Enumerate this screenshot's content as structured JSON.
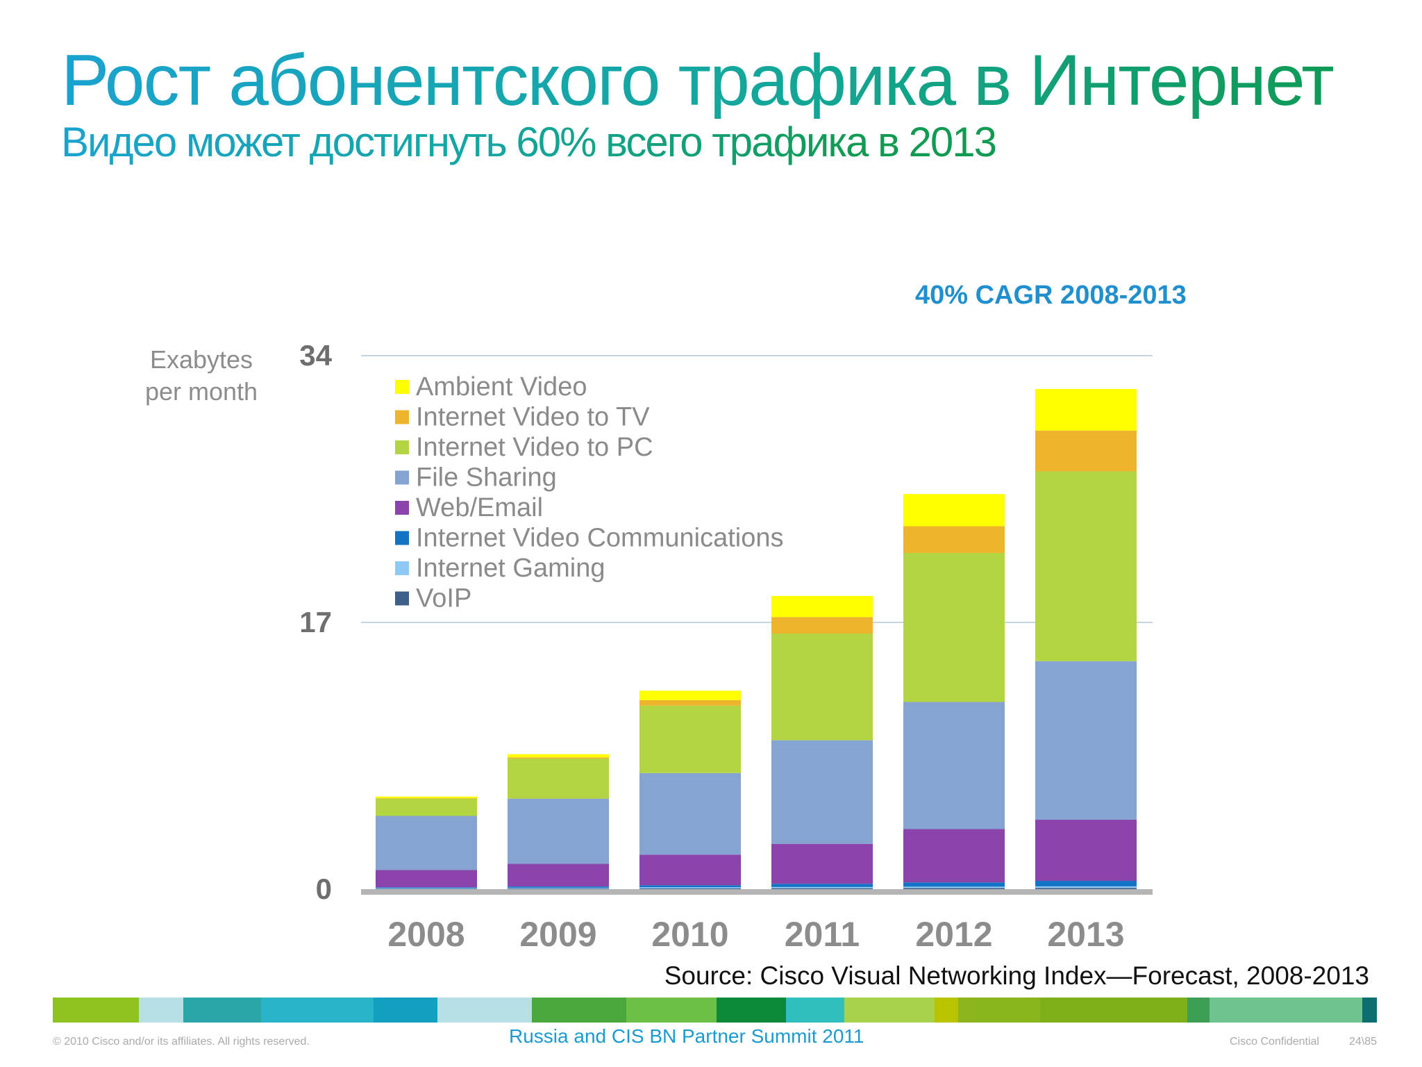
{
  "slide": {
    "title": "Рост абонентского трафика в Интернет",
    "subtitle": "Видео может достигнуть 60% всего трафика в 2013",
    "cagr": "40% CAGR 2008-2013",
    "source": "Source: Cisco Visual Networking Index—Forecast, 2008-2013",
    "footer": {
      "copyright": "© 2010 Cisco and/or its affiliates. All rights reserved.",
      "event": "Russia and CIS BN Partner Summit 2011",
      "confidential": "Cisco Confidential",
      "page": "24\\85"
    },
    "band_colors": [
      "#8dc21f",
      "#b9dfe6",
      "#2aa6a8",
      "#28b3c8",
      "#13a0c0",
      "#b9dfe6",
      "#4aa83c",
      "#6dbf45",
      "#0b8a3a",
      "#2fbfbf",
      "#a7d24a",
      "#b9c300",
      "#8db51d",
      "#8ab51d",
      "#7fb01a",
      "#3f9e55",
      "#6ec48e",
      "#0c6f6f"
    ]
  },
  "chart_data": {
    "type": "bar",
    "stacked": true,
    "ylabel": "Exabytes per month",
    "yticks": [
      0,
      17,
      34
    ],
    "ylim": [
      0,
      34
    ],
    "categories": [
      "2008",
      "2009",
      "2010",
      "2011",
      "2012",
      "2013"
    ],
    "legend_position": "top-left",
    "series": [
      {
        "name": "VoIP",
        "color": "#3d5f8a",
        "values": [
          0.03,
          0.04,
          0.05,
          0.06,
          0.07,
          0.08
        ]
      },
      {
        "name": "Internet Gaming",
        "color": "#8fc8f2",
        "values": [
          0.04,
          0.05,
          0.07,
          0.08,
          0.09,
          0.1
        ]
      },
      {
        "name": "Internet Video Communications",
        "color": "#1374c6",
        "values": [
          0.05,
          0.08,
          0.13,
          0.2,
          0.27,
          0.35
        ]
      },
      {
        "name": "Web/Email",
        "color": "#8a44ac",
        "values": [
          1.1,
          1.45,
          1.95,
          2.55,
          3.4,
          3.9
        ]
      },
      {
        "name": "File Sharing",
        "color": "#86a4d2",
        "values": [
          3.45,
          4.15,
          5.2,
          6.6,
          8.1,
          10.1
        ]
      },
      {
        "name": "Internet Video to PC",
        "color": "#b3d541",
        "values": [
          1.1,
          2.55,
          4.3,
          6.8,
          9.5,
          12.1
        ]
      },
      {
        "name": "Internet Video to TV",
        "color": "#eeb42b",
        "values": [
          0.03,
          0.08,
          0.35,
          1.05,
          1.7,
          2.6
        ]
      },
      {
        "name": "Ambient Video",
        "color": "#ffff00",
        "values": [
          0.1,
          0.2,
          0.6,
          1.35,
          2.05,
          2.65
        ]
      }
    ]
  }
}
